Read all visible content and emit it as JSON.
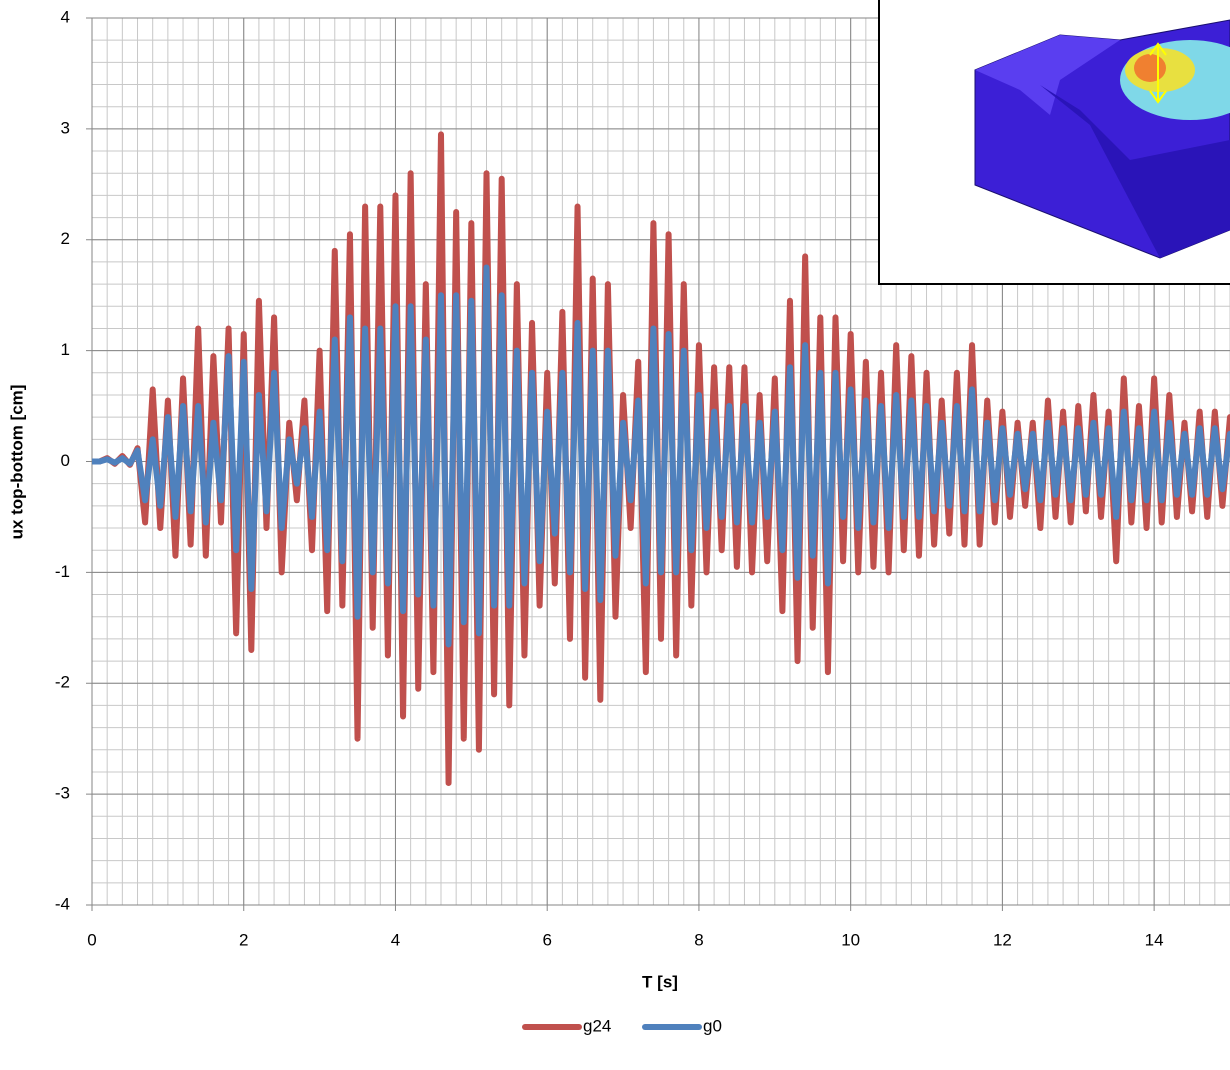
{
  "chart_data": {
    "type": "line",
    "xlabel": "T [s]",
    "ylabel": "ux top-bottom [cm]",
    "xlim": [
      0,
      15
    ],
    "ylim": [
      -4,
      4
    ],
    "xticks": [
      0,
      2,
      4,
      6,
      8,
      10,
      12,
      14
    ],
    "yticks": [
      -4,
      -3,
      -2,
      -1,
      0,
      1,
      2,
      3,
      4
    ],
    "grid": true,
    "x_minor_step": 0.2,
    "y_minor_step": 0.2,
    "legend": "bottom",
    "x": [
      0,
      0.1,
      0.2,
      0.3,
      0.4,
      0.5,
      0.6,
      0.7,
      0.8,
      0.9,
      1,
      1.1,
      1.2,
      1.3,
      1.4,
      1.5,
      1.6,
      1.7,
      1.8,
      1.9,
      2,
      2.1,
      2.2,
      2.3,
      2.4,
      2.5,
      2.6,
      2.7,
      2.8,
      2.9,
      3,
      3.1,
      3.2,
      3.3,
      3.4,
      3.5,
      3.6,
      3.7,
      3.8,
      3.9,
      4,
      4.1,
      4.2,
      4.3,
      4.4,
      4.5,
      4.6,
      4.7,
      4.8,
      4.9,
      5,
      5.1,
      5.2,
      5.3,
      5.4,
      5.5,
      5.6,
      5.7,
      5.8,
      5.9,
      6,
      6.1,
      6.2,
      6.3,
      6.4,
      6.5,
      6.6,
      6.7,
      6.8,
      6.9,
      7,
      7.1,
      7.2,
      7.3,
      7.4,
      7.5,
      7.6,
      7.7,
      7.8,
      7.9,
      8,
      8.1,
      8.2,
      8.3,
      8.4,
      8.5,
      8.6,
      8.7,
      8.8,
      8.9,
      9,
      9.1,
      9.2,
      9.3,
      9.4,
      9.5,
      9.6,
      9.7,
      9.8,
      9.9,
      10,
      10.1,
      10.2,
      10.3,
      10.4,
      10.5,
      10.6,
      10.7,
      10.8,
      10.9,
      11,
      11.1,
      11.2,
      11.3,
      11.4,
      11.5,
      11.6,
      11.7,
      11.8,
      11.9,
      12,
      12.1,
      12.2,
      12.3,
      12.4,
      12.5,
      12.6,
      12.7,
      12.8,
      12.9,
      13,
      13.1,
      13.2,
      13.3,
      13.4,
      13.5,
      13.6,
      13.7,
      13.8,
      13.9,
      14,
      14.1,
      14.2,
      14.3,
      14.4,
      14.5,
      14.6,
      14.7,
      14.8,
      14.9,
      15
    ],
    "series": [
      {
        "name": "g24",
        "color": "#c0504d",
        "values": [
          0,
          0,
          0.03,
          -0.02,
          0.05,
          -0.03,
          0.12,
          -0.55,
          0.65,
          -0.6,
          0.55,
          -0.85,
          0.75,
          -0.75,
          1.2,
          -0.85,
          0.95,
          -0.55,
          1.2,
          -1.55,
          1.15,
          -1.7,
          1.45,
          -0.6,
          1.3,
          -1.0,
          0.35,
          -0.35,
          0.55,
          -0.8,
          1.0,
          -1.35,
          1.9,
          -1.3,
          2.05,
          -2.5,
          2.3,
          -1.5,
          2.3,
          -1.75,
          2.4,
          -2.3,
          2.6,
          -2.05,
          1.6,
          -1.9,
          2.95,
          -2.9,
          2.25,
          -2.5,
          2.15,
          -2.6,
          2.6,
          -2.1,
          2.55,
          -2.2,
          1.6,
          -1.75,
          1.25,
          -1.3,
          0.8,
          -1.1,
          1.35,
          -1.6,
          2.3,
          -1.95,
          1.65,
          -2.15,
          1.6,
          -1.4,
          0.6,
          -0.6,
          0.9,
          -1.9,
          2.15,
          -1.6,
          2.05,
          -1.75,
          1.6,
          -1.3,
          1.05,
          -1.0,
          0.85,
          -0.8,
          0.85,
          -0.95,
          0.85,
          -1.0,
          0.6,
          -0.9,
          0.75,
          -1.35,
          1.45,
          -1.8,
          1.85,
          -1.5,
          1.3,
          -1.9,
          1.3,
          -0.9,
          1.15,
          -1.0,
          0.9,
          -0.95,
          0.8,
          -1.0,
          1.05,
          -0.8,
          0.95,
          -0.85,
          0.8,
          -0.75,
          0.55,
          -0.65,
          0.8,
          -0.75,
          1.05,
          -0.75,
          0.55,
          -0.55,
          0.45,
          -0.5,
          0.35,
          -0.4,
          0.35,
          -0.6,
          0.55,
          -0.5,
          0.45,
          -0.55,
          0.5,
          -0.45,
          0.6,
          -0.5,
          0.45,
          -0.9,
          0.75,
          -0.55,
          0.5,
          -0.6,
          0.75,
          -0.55,
          0.6,
          -0.5,
          0.35,
          -0.45,
          0.45,
          -0.5,
          0.45,
          -0.4,
          0.4
        ]
      },
      {
        "name": "g0",
        "color": "#4f81bd",
        "values": [
          0,
          0,
          0.02,
          -0.01,
          0.03,
          -0.02,
          0.1,
          -0.35,
          0.2,
          -0.4,
          0.4,
          -0.5,
          0.5,
          -0.45,
          0.5,
          -0.55,
          0.35,
          -0.35,
          0.95,
          -0.8,
          0.9,
          -1.15,
          0.6,
          -0.45,
          0.8,
          -0.6,
          0.2,
          -0.2,
          0.3,
          -0.5,
          0.45,
          -0.8,
          1.1,
          -0.9,
          1.3,
          -1.4,
          1.2,
          -1.0,
          1.2,
          -1.1,
          1.4,
          -1.35,
          1.4,
          -1.2,
          1.1,
          -1.3,
          1.5,
          -1.65,
          1.5,
          -1.45,
          1.45,
          -1.55,
          1.75,
          -1.3,
          1.5,
          -1.3,
          1.0,
          -1.1,
          0.8,
          -0.9,
          0.45,
          -0.65,
          0.8,
          -1.0,
          1.25,
          -1.15,
          1.0,
          -1.25,
          1.0,
          -0.85,
          0.35,
          -0.35,
          0.55,
          -1.1,
          1.2,
          -1.0,
          1.15,
          -1.0,
          1.0,
          -0.8,
          0.6,
          -0.6,
          0.45,
          -0.5,
          0.5,
          -0.55,
          0.5,
          -0.55,
          0.35,
          -0.5,
          0.45,
          -0.8,
          0.85,
          -1.05,
          1.05,
          -0.85,
          0.8,
          -1.1,
          0.8,
          -0.5,
          0.65,
          -0.6,
          0.55,
          -0.55,
          0.5,
          -0.6,
          0.6,
          -0.5,
          0.55,
          -0.5,
          0.5,
          -0.45,
          0.35,
          -0.4,
          0.5,
          -0.45,
          0.65,
          -0.45,
          0.35,
          -0.35,
          0.3,
          -0.3,
          0.25,
          -0.25,
          0.25,
          -0.35,
          0.35,
          -0.3,
          0.3,
          -0.35,
          0.3,
          -0.3,
          0.35,
          -0.3,
          0.3,
          -0.5,
          0.45,
          -0.35,
          0.3,
          -0.35,
          0.45,
          -0.35,
          0.35,
          -0.3,
          0.25,
          -0.3,
          0.3,
          -0.3,
          0.3,
          -0.25,
          0.25
        ]
      }
    ]
  }
}
